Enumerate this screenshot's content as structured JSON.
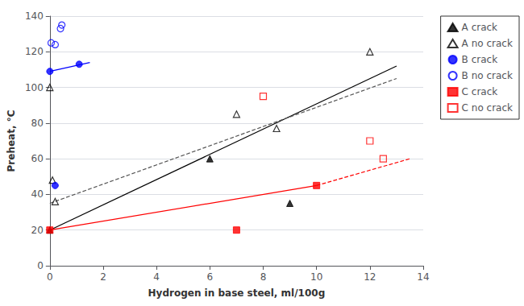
{
  "chart_data": {
    "type": "scatter",
    "xlabel": "Hydrogen in base steel, ml/100g",
    "ylabel": "Preheat, °C",
    "xlim": [
      0,
      14
    ],
    "ylim": [
      0,
      140
    ],
    "xticks": [
      0,
      2,
      4,
      6,
      8,
      10,
      12,
      14
    ],
    "yticks": [
      0,
      20,
      40,
      60,
      80,
      100,
      120,
      140
    ],
    "grid": "y",
    "legend": "right",
    "series": [
      {
        "type": "line",
        "color": "#000000",
        "line_style": "solid",
        "x": [
          0.0,
          13.0
        ],
        "y": [
          20.0,
          112.0
        ]
      },
      {
        "type": "line",
        "color": "#555555",
        "line_style": "dashed",
        "x": [
          0.0,
          13.0
        ],
        "y": [
          35.0,
          105.0
        ]
      },
      {
        "type": "line",
        "color": "#0000ff",
        "line_style": "solid",
        "x": [
          0.0,
          1.5
        ],
        "y": [
          109.0,
          114.0
        ]
      },
      {
        "type": "line",
        "color": "#ff0000",
        "line_style": "solid",
        "x": [
          0.0,
          10.0
        ],
        "y": [
          20.0,
          45.0
        ]
      },
      {
        "type": "line",
        "color": "#ff0000",
        "line_style": "dashed",
        "x": [
          10.0,
          13.5
        ],
        "y": [
          45.0,
          60.0
        ]
      },
      {
        "type": "scatter",
        "name": "A crack",
        "color": "#000000",
        "marker": "triangle",
        "x": [
          0.0,
          6.0,
          9.0
        ],
        "y": [
          20,
          60,
          35
        ]
      },
      {
        "type": "scatter",
        "name": "A no crack",
        "color": "#000000",
        "marker": "triangle-open",
        "x": [
          0.0,
          0.1,
          0.2,
          7.0,
          8.5,
          12.0
        ],
        "y": [
          100,
          48,
          36,
          85,
          77,
          120
        ]
      },
      {
        "type": "scatter",
        "name": "B crack",
        "color": "#0000ff",
        "marker": "circle",
        "x": [
          0.0,
          0.2,
          1.1
        ],
        "y": [
          109,
          45,
          113
        ]
      },
      {
        "type": "scatter",
        "name": "B no crack",
        "color": "#0000ff",
        "marker": "circle-open",
        "x": [
          0.05,
          0.2,
          0.4,
          0.45
        ],
        "y": [
          125,
          124,
          133,
          135
        ]
      },
      {
        "type": "scatter",
        "name": "C crack",
        "color": "#ff0000",
        "marker": "square",
        "x": [
          0.0,
          7.0,
          10.0
        ],
        "y": [
          20,
          20,
          45
        ]
      },
      {
        "type": "scatter",
        "name": "C no crack",
        "color": "#ff0000",
        "marker": "square-open",
        "x": [
          8.0,
          12.0,
          12.5
        ],
        "y": [
          95,
          70,
          60
        ]
      }
    ]
  }
}
